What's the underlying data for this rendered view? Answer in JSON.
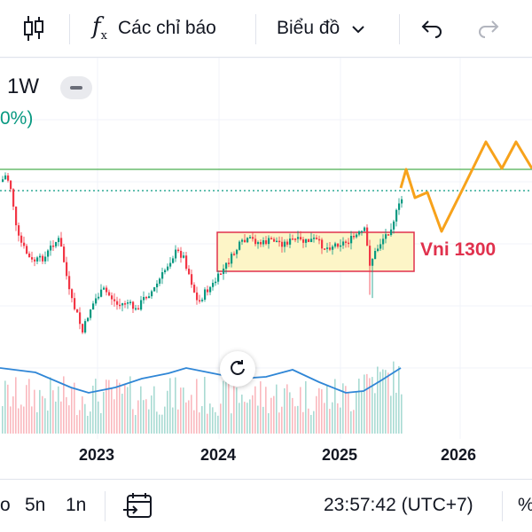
{
  "toolbar": {
    "chart_type_icon": "candlestick-icon",
    "indicators_icon": "fx-icon",
    "indicators_label": "Các chỉ báo",
    "chart_menu_label": "Biểu đồ",
    "undo_icon": "undo-icon",
    "redo_icon": "redo-icon"
  },
  "legend": {
    "interval": "1W",
    "change_fragment": "0%)",
    "change_color": "#089981",
    "collapse_icon": "minus-icon"
  },
  "chart_data": {
    "type": "candlestick",
    "x_ticks": [
      "2023",
      "2024",
      "2025",
      "2026"
    ],
    "annotation": "Vni 1300",
    "colors": {
      "up": "#089981",
      "down": "#f23645",
      "volume_ma": "#2f86d6",
      "projection": "#f7a21b",
      "resistance": "#4caf50",
      "range_box_fill": "#fdf5c7",
      "range_box_border": "#e0314d"
    },
    "grid": true
  },
  "reset_icon": "reset-icon",
  "bottombar": {
    "range_partial": "o",
    "range_5y": "5n",
    "range_1y": "1n",
    "goto_date_icon": "calendar-arrow-icon",
    "time": "23:57:42 (UTC+7)",
    "percent_partial": "%"
  }
}
